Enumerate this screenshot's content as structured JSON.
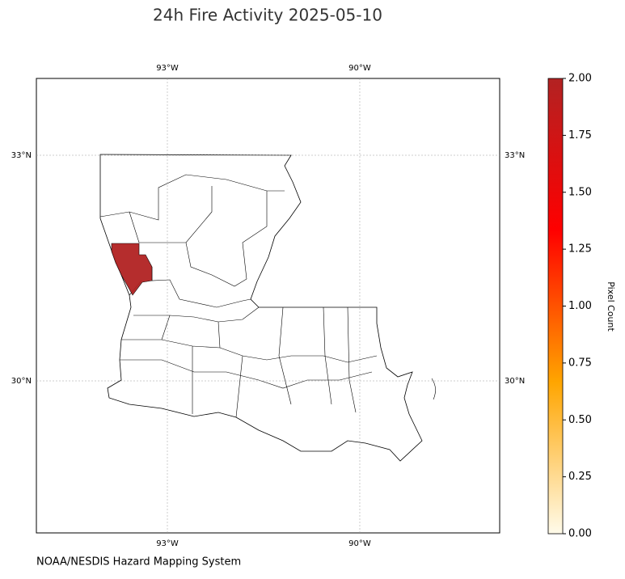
{
  "title": "24h Fire Activity 2025-05-10",
  "map": {
    "lon_labels": [
      {
        "value": -93,
        "label": "93°W"
      },
      {
        "value": -90,
        "label": "90°W"
      }
    ],
    "lat_labels": [
      {
        "value": 33,
        "label": "33°N"
      },
      {
        "value": 30,
        "label": "30°N"
      }
    ]
  },
  "fires": [
    {
      "value": 2
    }
  ],
  "colorbar": {
    "label": "Pixel Count",
    "lim": [
      0,
      2
    ],
    "colors": [
      "#fffbea",
      "#ffa500",
      "#ff0000",
      "#b22222"
    ],
    "ticks": [
      {
        "value": 0,
        "label": "0.00"
      },
      {
        "value": 0.25,
        "label": "0.25"
      },
      {
        "value": 0.5,
        "label": "0.50"
      },
      {
        "value": 0.75,
        "label": "0.75"
      },
      {
        "value": 1,
        "label": "1.00"
      },
      {
        "value": 1.25,
        "label": "1.25"
      },
      {
        "value": 1.5,
        "label": "1.50"
      },
      {
        "value": 1.75,
        "label": "1.75"
      },
      {
        "value": 2,
        "label": "2.00"
      }
    ]
  },
  "credit": "NOAA/NESDIS Hazard Mapping System"
}
